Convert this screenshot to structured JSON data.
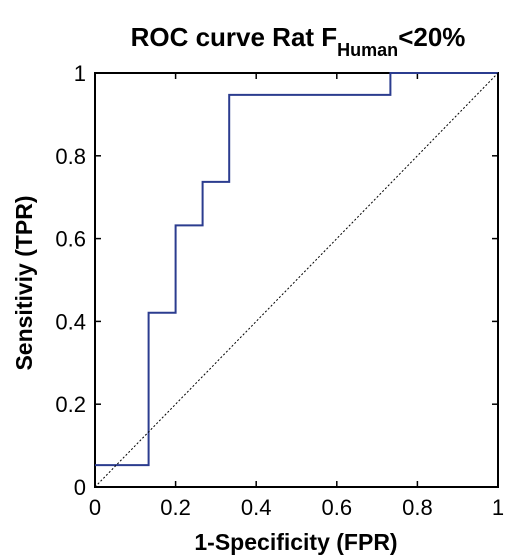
{
  "chart_data": {
    "type": "line",
    "title": {
      "prefix": "ROC curve Rat F",
      "subscript": "Human",
      "suffix": "<20%"
    },
    "xlabel": "1-Specificity (FPR)",
    "ylabel": "Sensitiviy (TPR)",
    "xlim": [
      0,
      1
    ],
    "ylim": [
      0,
      1
    ],
    "x_ticks": [
      0,
      0.2,
      0.4,
      0.6,
      0.8,
      1
    ],
    "y_ticks": [
      0,
      0.2,
      0.4,
      0.6,
      0.8,
      1
    ],
    "x_tick_labels": [
      "0",
      "0.2",
      "0.4",
      "0.6",
      "0.8",
      "1"
    ],
    "y_tick_labels": [
      "0",
      "0.2",
      "0.4",
      "0.6",
      "0.8",
      "1"
    ],
    "grid": false,
    "series": [
      {
        "color": "#2b3c8f",
        "style": "solid",
        "points": [
          [
            0,
            0.053
          ],
          [
            0.133,
            0.053
          ],
          [
            0.133,
            0.421
          ],
          [
            0.2,
            0.421
          ],
          [
            0.2,
            0.632
          ],
          [
            0.267,
            0.632
          ],
          [
            0.267,
            0.737
          ],
          [
            0.333,
            0.737
          ],
          [
            0.333,
            0.947
          ],
          [
            0.733,
            0.947
          ],
          [
            0.733,
            1.0
          ],
          [
            1.0,
            1.0
          ]
        ]
      },
      {
        "color": "#000000",
        "style": "dotted",
        "points": [
          [
            0,
            0
          ],
          [
            1,
            1
          ]
        ]
      }
    ]
  }
}
